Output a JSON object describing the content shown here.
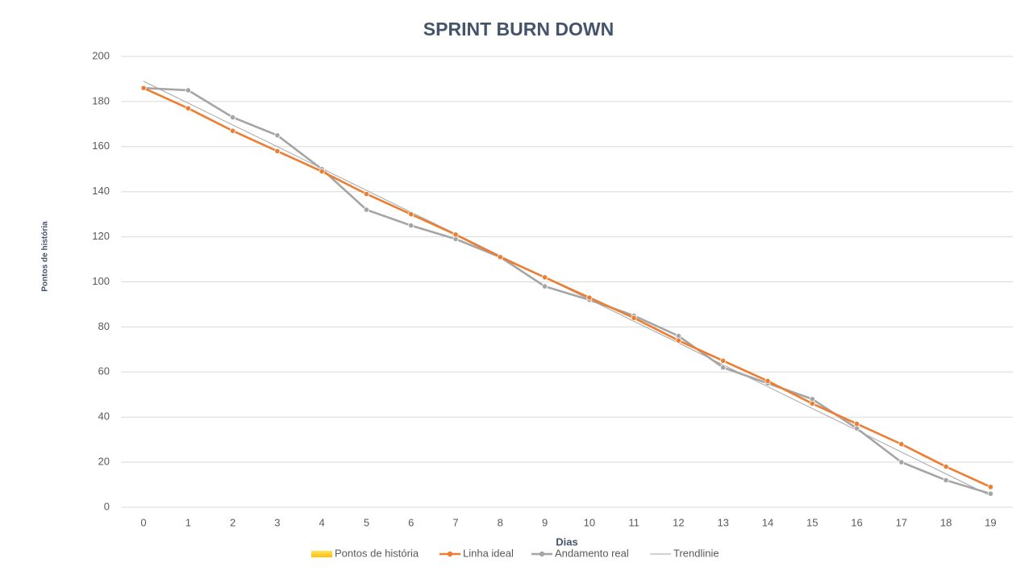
{
  "chart_data": {
    "type": "line",
    "title": "SPRINT BURN DOWN",
    "x_label": "Dias",
    "y_label": "Pontos de história",
    "categories": [
      "0",
      "1",
      "2",
      "3",
      "4",
      "5",
      "6",
      "7",
      "8",
      "9",
      "10",
      "11",
      "12",
      "13",
      "14",
      "15",
      "16",
      "17",
      "18",
      "19"
    ],
    "series": [
      {
        "name": "Pontos de história",
        "color": "#ffc000",
        "kind": "bar",
        "values": [
          null,
          null,
          null,
          null,
          null,
          null,
          null,
          null,
          null,
          null,
          null,
          null,
          null,
          null,
          null,
          null,
          null,
          null,
          null,
          null
        ]
      },
      {
        "name": "Linha ideal",
        "color": "#ed7d31",
        "kind": "line",
        "values": [
          186,
          177,
          167,
          158,
          149,
          139,
          130,
          121,
          111,
          102,
          93,
          84,
          74,
          65,
          56,
          46,
          37,
          28,
          18,
          9
        ]
      },
      {
        "name": "Andamento real",
        "color": "#a5a5a5",
        "kind": "line",
        "values": [
          186,
          185,
          173,
          165,
          150,
          132,
          125,
          119,
          111,
          98,
          92,
          85,
          76,
          62,
          55,
          48,
          35,
          20,
          12,
          6
        ]
      },
      {
        "name": "Trendlinie",
        "color": "#a5a5a5",
        "kind": "trend",
        "values": [
          189,
          179.3,
          169.6,
          160,
          150.3,
          140.6,
          130.9,
          121.3,
          111.6,
          101.9,
          92.2,
          82.5,
          72.9,
          63.2,
          53.5,
          43.8,
          34.2,
          24.5,
          14.8,
          5.1
        ]
      }
    ],
    "ylim": [
      0,
      200
    ],
    "yticks": [
      0,
      20,
      40,
      60,
      80,
      100,
      120,
      140,
      160,
      180,
      200
    ],
    "grid": true,
    "legend": "bottom"
  }
}
